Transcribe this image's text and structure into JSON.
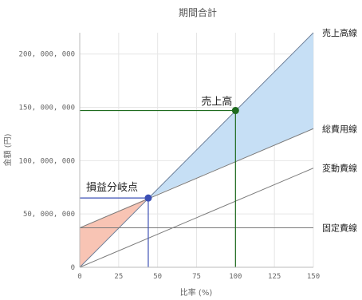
{
  "chart_data": {
    "type": "line",
    "title": "期間合計",
    "xlabel": "比率 (%)",
    "ylabel": "金額 (円)",
    "xlim": [
      0,
      150
    ],
    "ylim": [
      0,
      220000000
    ],
    "x_ticks": [
      0,
      25,
      50,
      75,
      100,
      125,
      150
    ],
    "y_ticks": [
      0,
      50000000,
      100000000,
      150000000,
      200000000
    ],
    "y_tick_labels": [
      "0",
      "50, 000, 000",
      "100, 000, 000",
      "150, 000, 000",
      "200, 000, 000"
    ],
    "grid": true,
    "x": [
      0,
      150
    ],
    "series": [
      {
        "name": "売上高線",
        "values": [
          0,
          220000000
        ],
        "color": "#6e7f99"
      },
      {
        "name": "総費用線",
        "values": [
          37000000,
          130000000
        ],
        "color": "#7a7a7a"
      },
      {
        "name": "変動費線",
        "values": [
          0,
          93000000
        ],
        "color": "#7a7a7a"
      },
      {
        "name": "固定費線",
        "values": [
          37000000,
          37000000
        ],
        "color": "#7a7a7a"
      }
    ],
    "annotations": [
      {
        "label": "損益分岐点",
        "x": 44,
        "y": 65000000,
        "color": "#3b4fb5"
      },
      {
        "label": "売上高",
        "x": 100,
        "y": 147000000,
        "color": "#1f6b1f"
      }
    ],
    "loss_fill_color": "#f8c4b4",
    "profit_fill_color": "#c6dff5"
  }
}
